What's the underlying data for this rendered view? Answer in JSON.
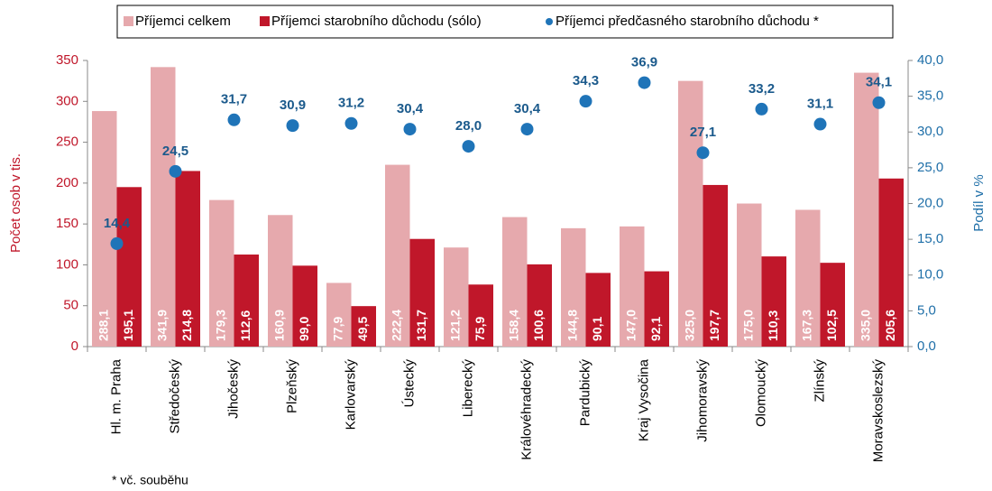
{
  "chart_data": {
    "type": "bar",
    "categories": [
      "Hl. m. Praha",
      "Středočeský",
      "Jihočeský",
      "Plzeňský",
      "Karlovarský",
      "Ústecký",
      "Liberecký",
      "Královéhradecký",
      "Pardubický",
      "Kraj Vysočina",
      "Jihomoravský",
      "Olomoucký",
      "Zlínský",
      "Moravskoslezský"
    ],
    "series": [
      {
        "name": "Příjemci celkem",
        "color": "#e6a9ad",
        "type": "bar",
        "values": [
          288.1,
          341.9,
          179.3,
          160.9,
          77.9,
          222.4,
          121.2,
          158.4,
          144.8,
          147.0,
          325.0,
          175.0,
          167.3,
          335.0
        ],
        "value_labels": [
          "288,1",
          "341,9",
          "179,3",
          "160,9",
          "77,9",
          "222,4",
          "121,2",
          "158,4",
          "144,8",
          "147,0",
          "325,0",
          "175,0",
          "167,3",
          "335,0"
        ]
      },
      {
        "name": "Příjemci starobního důchodu (sólo)",
        "color": "#c0172a",
        "type": "bar",
        "values": [
          195.1,
          214.8,
          112.6,
          99.0,
          49.5,
          131.7,
          75.9,
          100.6,
          90.1,
          92.1,
          197.7,
          110.3,
          102.5,
          205.6
        ],
        "value_labels": [
          "195,1",
          "214,8",
          "112,6",
          "99,0",
          "49,5",
          "131,7",
          "75,9",
          "100,6",
          "90,1",
          "92,1",
          "197,7",
          "110,3",
          "102,5",
          "205,6"
        ]
      },
      {
        "name": "Příjemci předčasného starobního důchodu *",
        "color": "#1f74b8",
        "type": "scatter",
        "axis": "y2",
        "values": [
          14.4,
          24.5,
          31.7,
          30.9,
          31.2,
          30.4,
          28.0,
          30.4,
          34.3,
          36.9,
          27.1,
          33.2,
          31.1,
          34.1
        ],
        "value_labels": [
          "14,4",
          "24,5",
          "31,7",
          "30,9",
          "31,2",
          "30,4",
          "28,0",
          "30,4",
          "34,3",
          "36,9",
          "27,1",
          "33,2",
          "31,1",
          "34,1"
        ]
      }
    ],
    "ylabel": "Počet osob v tis.",
    "y2label": "Podíl v %",
    "ylim": [
      0,
      350
    ],
    "yticks": [
      0,
      50,
      100,
      150,
      200,
      250,
      300,
      350
    ],
    "y2lim": [
      0,
      40
    ],
    "y2ticks": [
      {
        "value": 0,
        "label": "0,0"
      },
      {
        "value": 5,
        "label": "5,0"
      },
      {
        "value": 10,
        "label": "10,0"
      },
      {
        "value": 15,
        "label": "15,0"
      },
      {
        "value": 20,
        "label": "20,0"
      },
      {
        "value": 25,
        "label": "25,0"
      },
      {
        "value": 30,
        "label": "30,0"
      },
      {
        "value": 35,
        "label": "35,0"
      },
      {
        "value": 40,
        "label": "40,0"
      }
    ],
    "legend": "top",
    "footnote": "* vč. souběhu"
  }
}
